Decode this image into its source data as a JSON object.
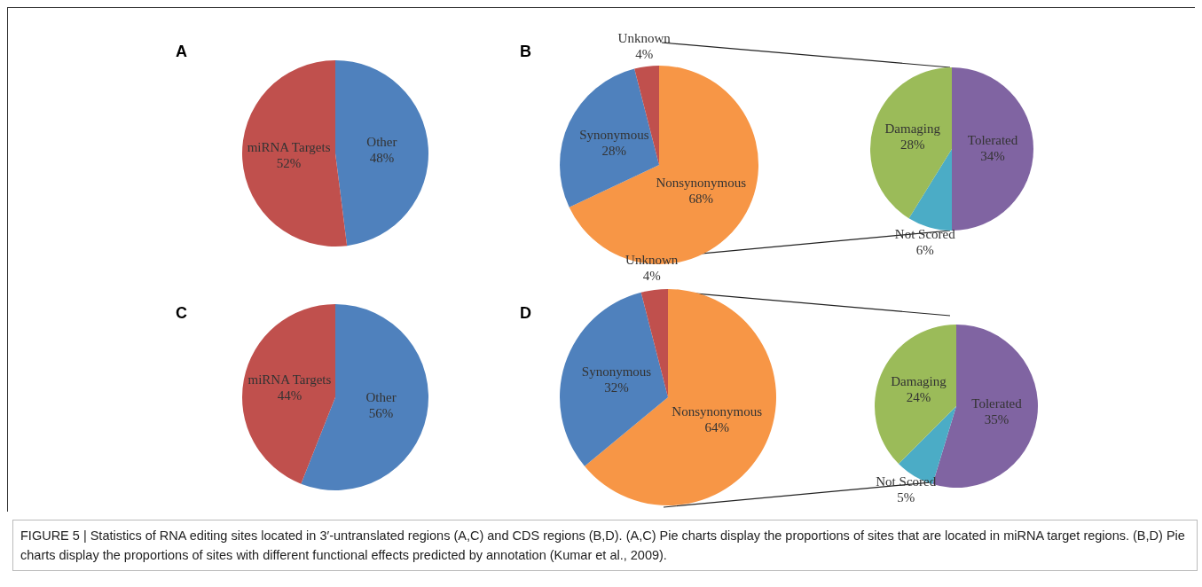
{
  "chart_data": [
    {
      "type": "pie",
      "title": "A",
      "categories": [
        "Other",
        "miRNA Targets"
      ],
      "values": [
        48,
        52
      ],
      "value_labels": [
        "48%",
        "52%"
      ],
      "colors": [
        "#4f81bd",
        "#c0504d"
      ],
      "annotations": [
        "FIGURE 5 | Statistics of RNA editing sites located in 3′-untranslated regions (A,C) and CDS regions (B,D). (A,C) Pie charts display the proportions of sites that are located in miRNA target regions. (B,D) Pie charts display the proportions of sites with different functional effects predicted by annotation (Kumar et al., 2009)."
      ]
    },
    {
      "type": "pie",
      "title": "B",
      "categories": [
        "Nonsynonymous",
        "Synonymous",
        "Unknown"
      ],
      "values": [
        68,
        28,
        4
      ],
      "value_labels": [
        "68%",
        "28%",
        "4%"
      ],
      "colors": [
        "#f79646",
        "#4f81bd",
        "#c0504d"
      ]
    },
    {
      "type": "pie",
      "categories": [
        "Tolerated",
        "Not Scored",
        "Damaging"
      ],
      "values": [
        34,
        6,
        28
      ],
      "value_labels": [
        "34%",
        "6%",
        "28%"
      ],
      "colors": [
        "#8064a2",
        "#4bacc6",
        "#9bbb59"
      ]
    },
    {
      "type": "pie",
      "title": "C",
      "categories": [
        "Other",
        "miRNA Targets"
      ],
      "values": [
        56,
        44
      ],
      "value_labels": [
        "56%",
        "44%"
      ],
      "colors": [
        "#4f81bd",
        "#c0504d"
      ]
    },
    {
      "type": "pie",
      "title": "D",
      "categories": [
        "Nonsynonymous",
        "Synonymous",
        "Unknown"
      ],
      "values": [
        64,
        32,
        4
      ],
      "value_labels": [
        "64%",
        "32%",
        "4%"
      ],
      "colors": [
        "#f79646",
        "#4f81bd",
        "#c0504d"
      ]
    },
    {
      "type": "pie",
      "categories": [
        "Tolerated",
        "Not Scored",
        "Damaging"
      ],
      "values": [
        35,
        5,
        24
      ],
      "value_labels": [
        "35%",
        "5%",
        "24%"
      ],
      "colors": [
        "#8064a2",
        "#4bacc6",
        "#9bbb59"
      ]
    }
  ]
}
